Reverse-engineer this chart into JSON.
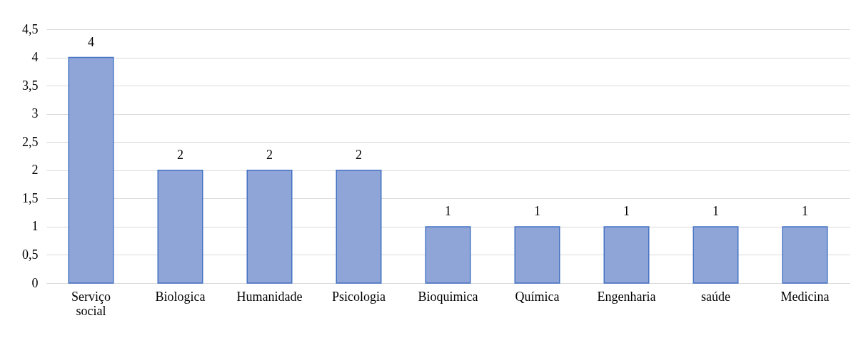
{
  "chart_data": {
    "type": "bar",
    "categories": [
      "Serviço social",
      "Biologica",
      "Humanidade",
      "Psicologia",
      "Bioquimica",
      "Química",
      "Engenharia",
      "saúde",
      "Medicina"
    ],
    "values": [
      4,
      2,
      2,
      2,
      1,
      1,
      1,
      1,
      1
    ],
    "color": "#8fa5d8",
    "ylim": [
      0,
      4.5
    ],
    "yticks": [
      0,
      {
        "value": 0.5,
        "label": "0,5"
      },
      1,
      {
        "value": 1.5,
        "label": "1,5"
      },
      2,
      {
        "value": 2.5,
        "label": "2,5"
      },
      3,
      {
        "value": 3.5,
        "label": "3,5"
      },
      4,
      {
        "value": 4.5,
        "label": "4,5"
      }
    ],
    "grid": "y",
    "data_labels": true
  }
}
